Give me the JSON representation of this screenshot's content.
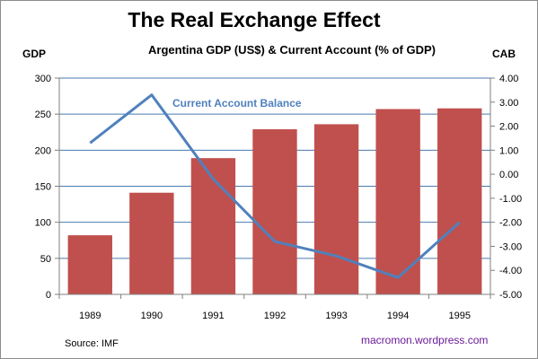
{
  "chart_data": {
    "type": "bar+line",
    "title": "The Real Exchange Effect",
    "subtitle": "Argentina GDP (US$) & Current Account (% of GDP)",
    "y_left_label": "GDP",
    "y_right_label": "CAB",
    "categories": [
      "1989",
      "1990",
      "1991",
      "1992",
      "1993",
      "1994",
      "1995"
    ],
    "series": [
      {
        "type": "bar",
        "axis": "left",
        "values": [
          82,
          141,
          189,
          229,
          236,
          257,
          258
        ],
        "color": "#c0504d"
      },
      {
        "name": "Current Account Balance",
        "type": "line",
        "axis": "right",
        "values": [
          1.3,
          3.3,
          -0.2,
          -2.8,
          -3.4,
          -4.3,
          -2.0
        ],
        "color": "#4f81bd"
      }
    ],
    "ylim_left": [
      0,
      300
    ],
    "left_ticks": [
      "0",
      "50",
      "100",
      "150",
      "200",
      "250",
      "300"
    ],
    "ylim_right": [
      -5,
      4
    ],
    "right_ticks": [
      "-5.00",
      "-4.00",
      "-3.00",
      "-2.00",
      "-1.00",
      "0.00",
      "1.00",
      "2.00",
      "3.00",
      "4.00"
    ],
    "grid": true,
    "source_note": "Source:  IMF",
    "credit": "macromon.wordpress.com"
  }
}
